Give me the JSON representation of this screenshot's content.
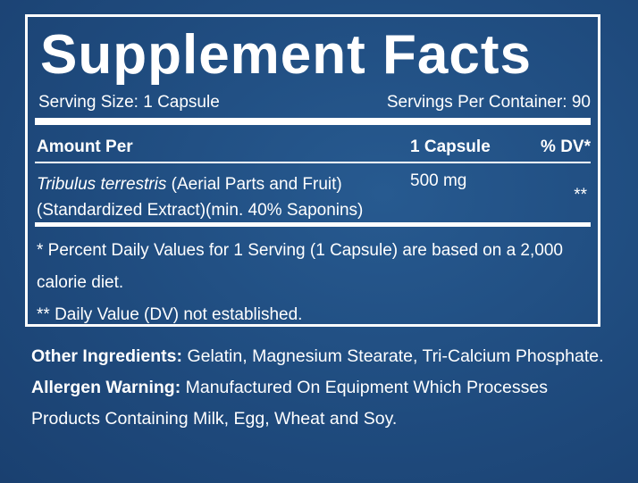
{
  "title": "Supplement Facts",
  "serving_size": "Serving Size: 1 Capsule",
  "servings_per_container": "Servings Per Container: 90",
  "table": {
    "header": [
      "Amount Per",
      "1 Capsule",
      "% DV*"
    ],
    "rows": [
      {
        "name": "Tribulus terrestris",
        "name_detail": "(Aerial Parts and Fruit)",
        "name_line2": "(Standardized Extract)(min. 40% Saponins)",
        "amount": "500 mg",
        "dv": "**"
      }
    ]
  },
  "footnotes": [
    "* Percent Daily Values for 1 Serving (1 Capsule) are based on a 2,000 calorie diet.",
    "** Daily Value (DV) not established."
  ],
  "other_ingredients": {
    "label": "Other Ingredients:",
    "text": "Gelatin, Magnesium Stearate, Tri-Calcium Phosphate."
  },
  "allergen_warning": {
    "label": "Allergen Warning:",
    "text": "Manufactured On Equipment Which Processes Products Containing Milk, Egg, Wheat and Soy."
  }
}
